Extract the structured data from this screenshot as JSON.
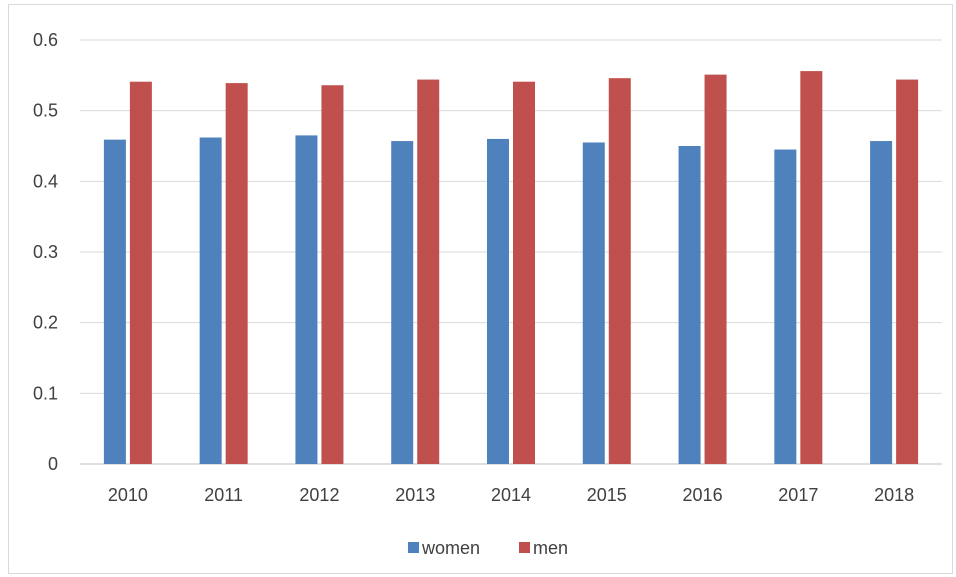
{
  "chart_data": {
    "type": "bar",
    "title": "",
    "xlabel": "",
    "ylabel": "",
    "categories": [
      "2010",
      "2011",
      "2012",
      "2013",
      "2014",
      "2015",
      "2016",
      "2017",
      "2018"
    ],
    "series": [
      {
        "name": "women",
        "color": "#4f81bd",
        "values": [
          0.459,
          0.462,
          0.465,
          0.457,
          0.46,
          0.455,
          0.45,
          0.445,
          0.457
        ]
      },
      {
        "name": "men",
        "color": "#c0504d",
        "values": [
          0.541,
          0.539,
          0.536,
          0.544,
          0.541,
          0.546,
          0.551,
          0.556,
          0.544
        ]
      }
    ],
    "ylim": [
      0,
      0.6
    ],
    "yticks": [
      "0",
      "0.1",
      "0.2",
      "0.3",
      "0.4",
      "0.5",
      "0.6"
    ],
    "grid": true,
    "legend_position": "bottom"
  }
}
